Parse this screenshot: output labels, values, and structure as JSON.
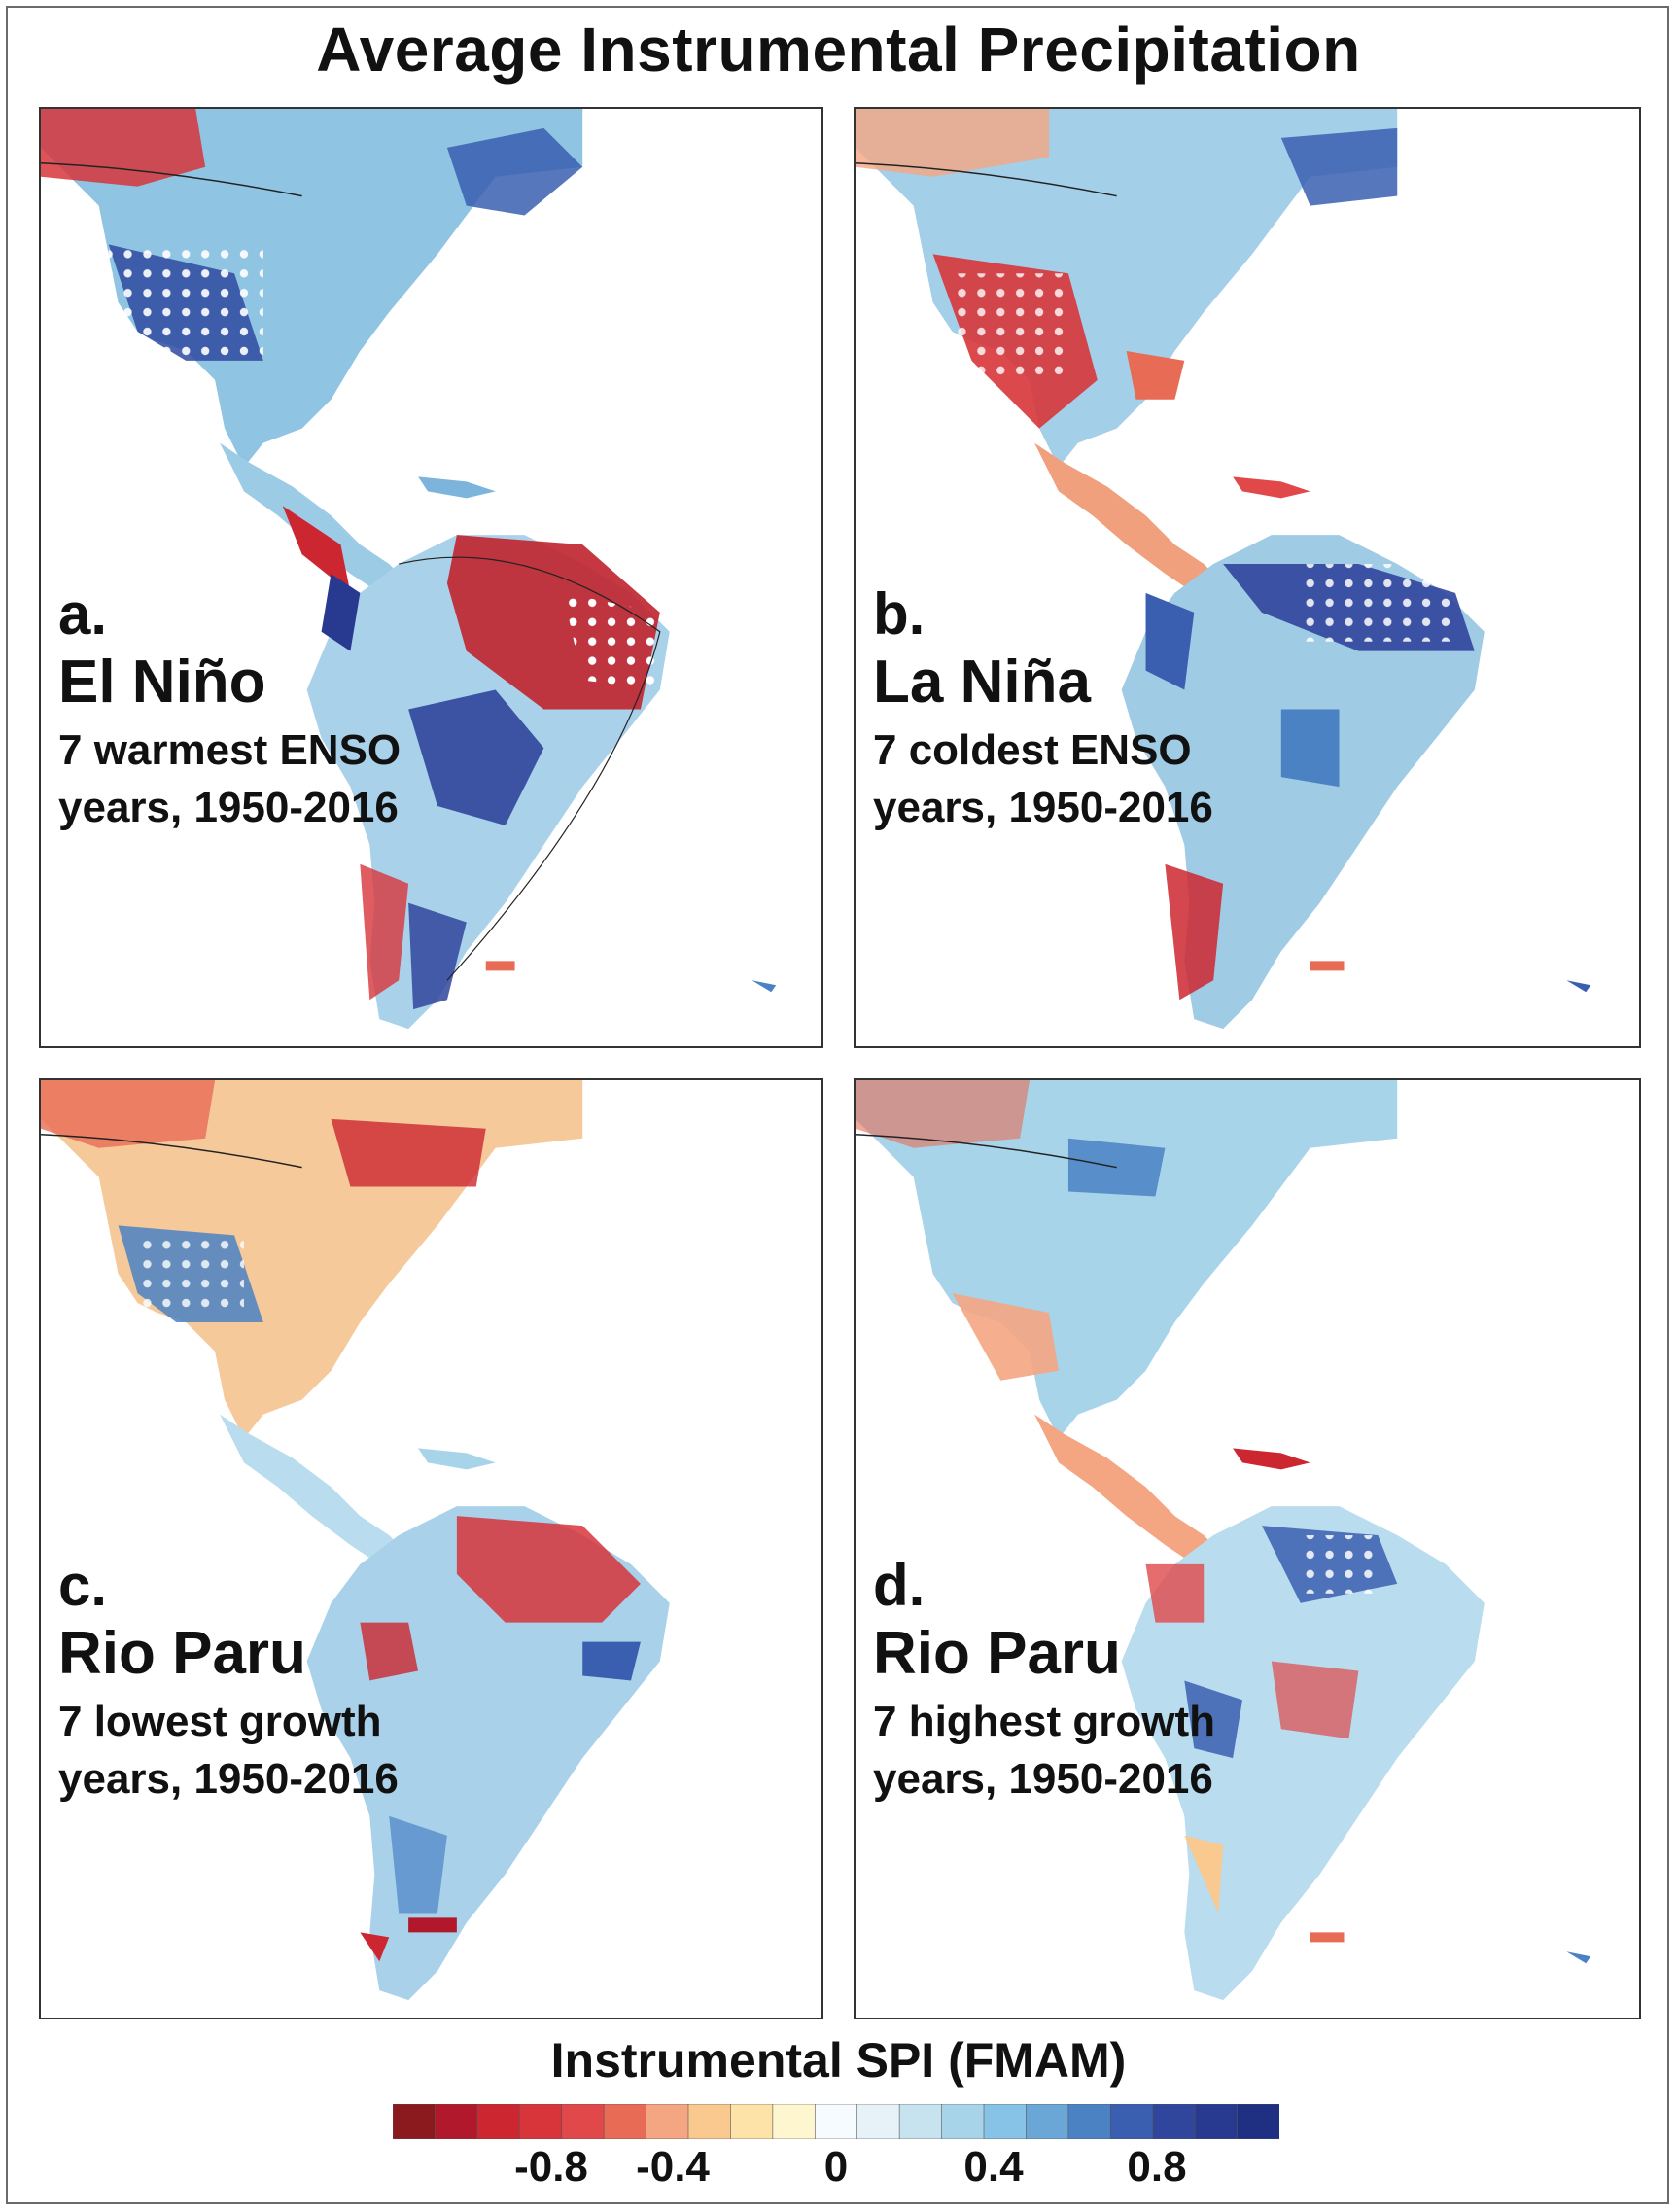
{
  "title": "Average Instrumental Precipitation",
  "panels": [
    {
      "letter": "a.",
      "name": "El Niño",
      "desc": "7 warmest ENSO",
      "years": "years, 1950-2016"
    },
    {
      "letter": "b.",
      "name": "La Niña",
      "desc": "7 coldest ENSO",
      "years": "years, 1950-2016"
    },
    {
      "letter": "c.",
      "name": "Rio Paru",
      "desc": "7 lowest growth",
      "years": "years, 1950-2016"
    },
    {
      "letter": "d.",
      "name": "Rio Paru",
      "desc": "7 highest growth",
      "years": "years, 1950-2016"
    }
  ],
  "colorbar": {
    "title": "Instrumental SPI (FMAM)",
    "ticks": [
      "-0.8",
      "-0.4",
      "0",
      "0.4",
      "0.8"
    ],
    "colors": [
      "#8b1a1f",
      "#b2182b",
      "#cc2730",
      "#d7353a",
      "#e0484a",
      "#e86c55",
      "#f4a582",
      "#f9c98f",
      "#fde3a7",
      "#fef6cf",
      "#f5fbff",
      "#e6f2f8",
      "#c7e3f0",
      "#a8d4ea",
      "#86c3e6",
      "#6aa7d6",
      "#4a82c4",
      "#3a5fb0",
      "#30459c",
      "#283a90",
      "#1f2f82"
    ]
  }
}
